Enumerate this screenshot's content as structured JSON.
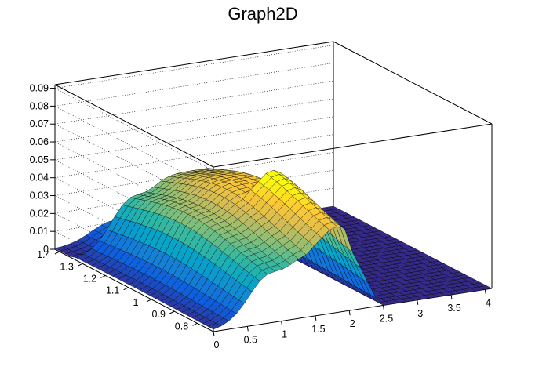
{
  "chart_data": {
    "type": "surface",
    "title": "Graph2D",
    "x_axis": {
      "ticks": [
        "0",
        "0.5",
        "1",
        "1.5",
        "2",
        "2.5",
        "3",
        "3.5",
        "4"
      ],
      "range": [
        0,
        4.1
      ]
    },
    "y_axis": {
      "ticks": [
        "0.8",
        "0.9",
        "1",
        "1.1",
        "1.2",
        "1.3",
        "1.4"
      ],
      "range": [
        0.73,
        1.42
      ]
    },
    "z_axis": {
      "ticks": [
        "0",
        "0.01",
        "0.02",
        "0.03",
        "0.04",
        "0.05",
        "0.06",
        "0.07",
        "0.08",
        "0.09"
      ],
      "range": [
        0,
        0.092
      ]
    },
    "grid": true,
    "colormap": [
      "#352a87",
      "#0f5cdd",
      "#1481d6",
      "#06a4ca",
      "#2eb7a4",
      "#87bf77",
      "#d1bb59",
      "#fec832",
      "#f9fb0e"
    ],
    "surface": {
      "description_of_values": "approximate z(x,y) read from the rendered surface",
      "peak_value": 0.058
    }
  }
}
